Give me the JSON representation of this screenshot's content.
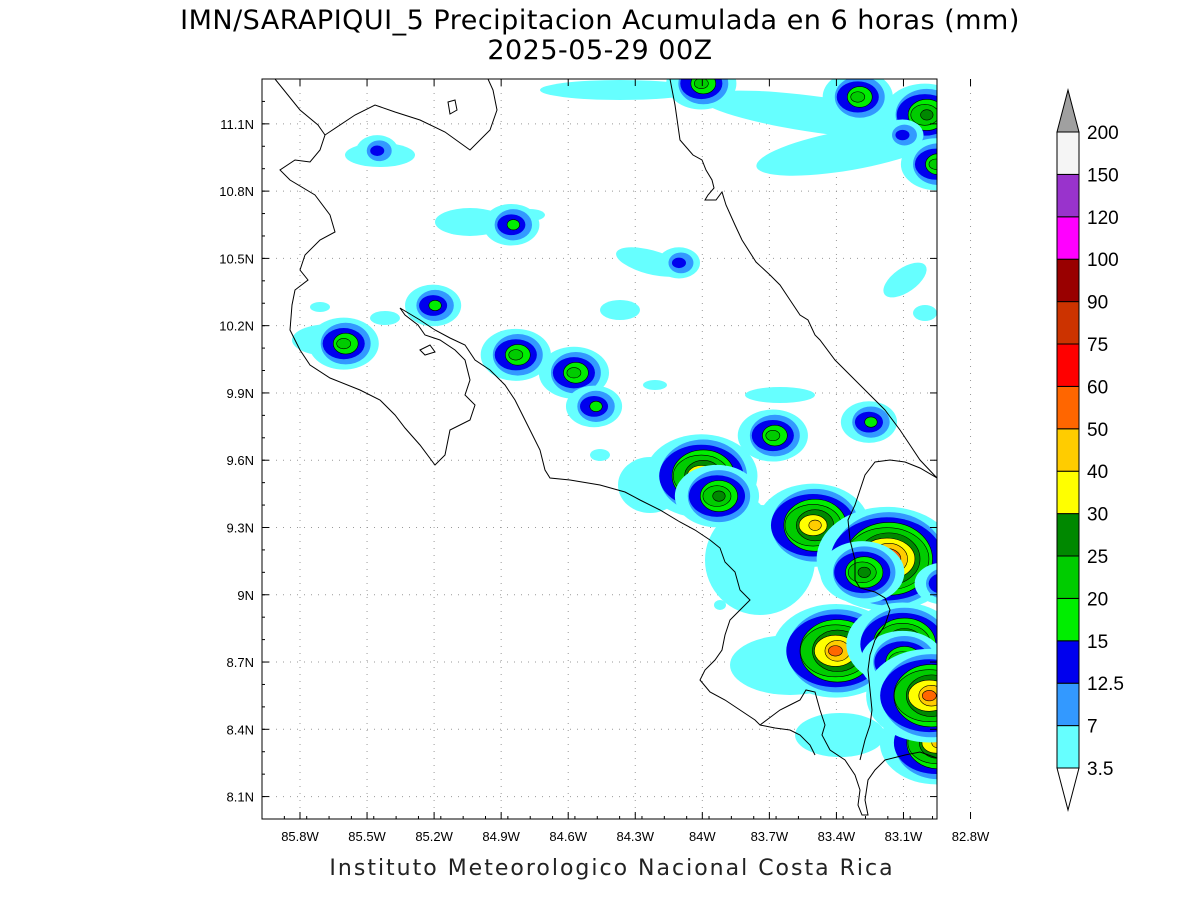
{
  "title": {
    "line1": "IMN/SARAPIQUI_5 Precipitacion Acumulada en 6 horas (mm)",
    "line2": "2025-05-29 00Z"
  },
  "footer": "Instituto Meteorologico Nacional Costa Rica",
  "axes": {
    "lon_range": [
      -85.97,
      -82.95
    ],
    "lat_range": [
      8.0,
      11.3
    ],
    "x_ticks": [
      "85.8W",
      "85.5W",
      "85.2W",
      "84.9W",
      "84.6W",
      "84.3W",
      "84W",
      "83.7W",
      "83.4W",
      "83.1W",
      "82.8W"
    ],
    "x_tick_values": [
      -85.8,
      -85.5,
      -85.2,
      -84.9,
      -84.6,
      -84.3,
      -84.0,
      -83.7,
      -83.4,
      -83.1,
      -82.8
    ],
    "y_ticks": [
      "11.1N",
      "10.8N",
      "10.5N",
      "10.2N",
      "9.9N",
      "9.6N",
      "9.3N",
      "9N",
      "8.7N",
      "8.4N",
      "8.1N"
    ],
    "y_tick_values": [
      11.1,
      10.8,
      10.5,
      10.2,
      9.9,
      9.6,
      9.3,
      9.0,
      8.7,
      8.4,
      8.1
    ],
    "grid": "dotted"
  },
  "colorbar": {
    "labels": [
      "3.5",
      "7",
      "12.5",
      "15",
      "20",
      "25",
      "30",
      "40",
      "50",
      "60",
      "75",
      "90",
      "100",
      "120",
      "150",
      "200"
    ],
    "colors": [
      "#66ffff",
      "#3399ff",
      "#0000ee",
      "#00ee00",
      "#00cc00",
      "#008800",
      "#ffff00",
      "#ffcc00",
      "#ff6600",
      "#ff0000",
      "#cc3300",
      "#990000",
      "#ff00ff",
      "#9933cc",
      "#f5f5f5"
    ],
    "triangle_top_color": "#a0a0a0",
    "triangle_bottom_color": "#ffffff"
  },
  "precip_cells": [
    {
      "lon": -85.6,
      "lat": 10.12,
      "level": 4
    },
    {
      "lon": -85.2,
      "lat": 10.29,
      "level": 3
    },
    {
      "lon": -84.83,
      "lat": 10.07,
      "level": 4
    },
    {
      "lon": -84.57,
      "lat": 9.99,
      "level": 4
    },
    {
      "lon": -84.48,
      "lat": 9.84,
      "level": 3
    },
    {
      "lon": -84.0,
      "lat": 9.53,
      "level": 7
    },
    {
      "lon": -83.93,
      "lat": 9.44,
      "level": 5
    },
    {
      "lon": -83.68,
      "lat": 9.71,
      "level": 4
    },
    {
      "lon": -83.5,
      "lat": 9.31,
      "level": 7
    },
    {
      "lon": -83.17,
      "lat": 9.16,
      "level": 9
    },
    {
      "lon": -83.28,
      "lat": 9.1,
      "level": 5
    },
    {
      "lon": -83.4,
      "lat": 8.75,
      "level": 8
    },
    {
      "lon": -83.1,
      "lat": 8.78,
      "level": 7
    },
    {
      "lon": -83.1,
      "lat": 8.7,
      "level": 5
    },
    {
      "lon": -82.95,
      "lat": 8.34,
      "level": 7
    },
    {
      "lon": -82.98,
      "lat": 8.55,
      "level": 8
    },
    {
      "lon": -83.3,
      "lat": 11.22,
      "level": 4
    },
    {
      "lon": -83.0,
      "lat": 11.14,
      "level": 5
    },
    {
      "lon": -82.95,
      "lat": 10.92,
      "level": 4
    },
    {
      "lon": -84.0,
      "lat": 11.28,
      "level": 4
    },
    {
      "lon": -84.85,
      "lat": 10.65,
      "level": 3
    },
    {
      "lon": -83.25,
      "lat": 9.77,
      "level": 3
    },
    {
      "lon": -82.92,
      "lat": 9.05,
      "level": 3
    },
    {
      "lon": -85.45,
      "lat": 10.98,
      "level": 2
    },
    {
      "lon": -84.1,
      "lat": 10.48,
      "level": 2
    },
    {
      "lon": -83.1,
      "lat": 11.05,
      "level": 2
    }
  ]
}
